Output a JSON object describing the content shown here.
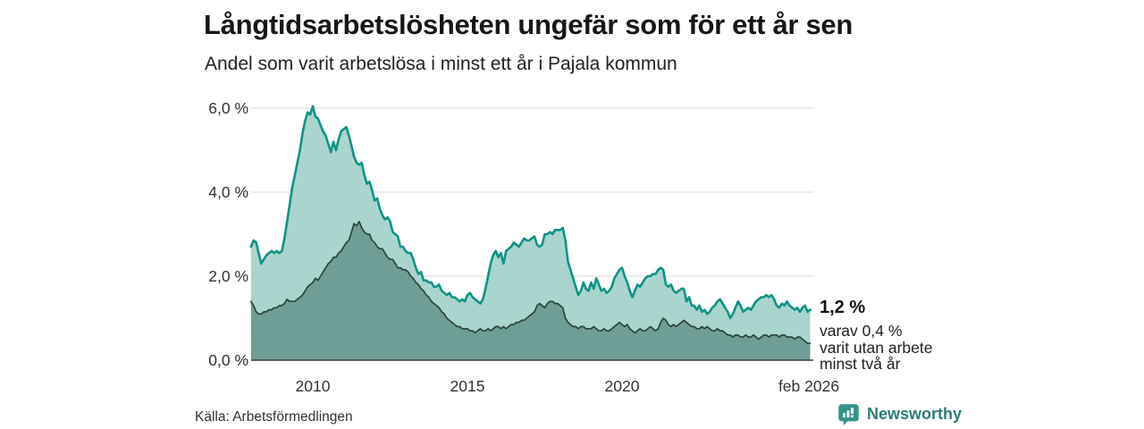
{
  "header": {
    "title": "Långtidsarbetslösheten ungefär som för ett år sen",
    "subtitle": "Andel som varit arbetslösa i minst ett år i Pajala kommun"
  },
  "annotation": {
    "value_label": "1,2 %",
    "detail_line1": "varav 0,4 %",
    "detail_line2": "varit utan arbete",
    "detail_line3": "minst två år"
  },
  "footer": {
    "source": "Källa: Arbetsförmedlingen",
    "brand_name": "Newsworthy"
  },
  "colors": {
    "series1_line": "#0f9384",
    "series1_fill": "#a9d5ce",
    "series2_line": "#2c433f",
    "series2_fill": "#6f9e96",
    "gridline": "#d9d9d9",
    "axis_line": "#3f3f3f",
    "brand_teal": "#37948b"
  },
  "chart_data": {
    "type": "area",
    "title": "Långtidsarbetslösheten ungefär som för ett år sen",
    "subtitle": "Andel som varit arbetslösa i minst ett år i Pajala kommun",
    "unit": "%",
    "frequency": "monthly",
    "x_start": "2008-01",
    "x_end": "2026-02",
    "x_start_year": 2008,
    "ylim": [
      0,
      6.3
    ],
    "grid": "horizontal",
    "legend_position": "none",
    "y_ticks": [
      {
        "value": 6,
        "label": "6,0 %"
      },
      {
        "value": 4,
        "label": "4,0 %"
      },
      {
        "value": 2,
        "label": "2,0 %"
      },
      {
        "value": 0,
        "label": "0,0 %"
      }
    ],
    "x_ticks": [
      {
        "year": 2010,
        "label": "2010"
      },
      {
        "year": 2015,
        "label": "2015"
      },
      {
        "year": 2020,
        "label": "2020"
      },
      {
        "year": 2026.08,
        "label": "feb 2026"
      }
    ],
    "last_values": {
      "at_least_one_year": 1.2,
      "at_least_two_years": 0.4
    },
    "series": [
      {
        "name": "Andel arbetslösa minst ett år",
        "values": [
          2.7,
          2.85,
          2.8,
          2.55,
          2.3,
          2.4,
          2.5,
          2.55,
          2.6,
          2.55,
          2.6,
          2.55,
          2.6,
          2.9,
          3.3,
          3.7,
          4.1,
          4.4,
          4.7,
          5.0,
          5.4,
          5.7,
          5.9,
          5.85,
          6.05,
          5.8,
          5.75,
          5.6,
          5.45,
          5.35,
          5.15,
          4.95,
          5.2,
          5.0,
          5.25,
          5.45,
          5.5,
          5.55,
          5.35,
          5.1,
          4.85,
          4.7,
          4.65,
          4.7,
          4.4,
          4.2,
          4.25,
          4.05,
          3.8,
          3.85,
          3.6,
          3.45,
          3.35,
          3.4,
          3.3,
          3.05,
          3.0,
          2.95,
          2.7,
          2.7,
          2.6,
          2.55,
          2.55,
          2.4,
          2.2,
          2.05,
          2.1,
          1.9,
          1.9,
          1.85,
          1.85,
          1.75,
          1.75,
          1.8,
          1.65,
          1.6,
          1.55,
          1.6,
          1.5,
          1.5,
          1.45,
          1.4,
          1.45,
          1.4,
          1.55,
          1.6,
          1.5,
          1.45,
          1.4,
          1.35,
          1.45,
          1.7,
          2.0,
          2.3,
          2.5,
          2.6,
          2.45,
          2.55,
          2.3,
          2.6,
          2.65,
          2.7,
          2.8,
          2.75,
          2.7,
          2.8,
          2.9,
          2.85,
          2.85,
          2.9,
          2.95,
          2.75,
          2.7,
          2.75,
          3.0,
          3.0,
          3.05,
          3.0,
          3.1,
          3.1,
          3.1,
          3.15,
          2.85,
          2.35,
          2.15,
          1.95,
          1.75,
          1.55,
          1.65,
          1.85,
          1.7,
          1.65,
          1.85,
          1.7,
          1.95,
          1.8,
          1.65,
          1.7,
          1.6,
          1.65,
          1.75,
          1.95,
          2.05,
          2.15,
          2.2,
          2.0,
          1.85,
          1.65,
          1.5,
          1.65,
          1.8,
          1.75,
          1.85,
          1.95,
          2.0,
          2.0,
          2.05,
          2.05,
          2.15,
          2.2,
          2.15,
          1.8,
          1.75,
          1.8,
          1.65,
          1.6,
          1.65,
          1.7,
          1.7,
          1.4,
          1.5,
          1.3,
          1.3,
          1.2,
          1.3,
          1.15,
          1.2,
          1.1,
          1.15,
          1.25,
          1.3,
          1.4,
          1.45,
          1.35,
          1.25,
          1.15,
          1.0,
          1.1,
          1.25,
          1.4,
          1.3,
          1.15,
          1.2,
          1.25,
          1.2,
          1.3,
          1.4,
          1.45,
          1.5,
          1.5,
          1.55,
          1.5,
          1.55,
          1.45,
          1.3,
          1.25,
          1.35,
          1.3,
          1.4,
          1.3,
          1.25,
          1.2,
          1.25,
          1.15,
          1.25,
          1.3,
          1.15,
          1.2
        ]
      },
      {
        "name": "varav utan arbete minst två år",
        "values": [
          1.4,
          1.3,
          1.15,
          1.1,
          1.1,
          1.15,
          1.15,
          1.2,
          1.2,
          1.25,
          1.25,
          1.3,
          1.3,
          1.35,
          1.45,
          1.4,
          1.4,
          1.4,
          1.45,
          1.5,
          1.55,
          1.65,
          1.75,
          1.8,
          1.85,
          1.95,
          1.9,
          2.0,
          2.1,
          2.2,
          2.3,
          2.35,
          2.45,
          2.45,
          2.55,
          2.6,
          2.7,
          2.8,
          2.85,
          3.05,
          3.25,
          3.2,
          3.3,
          3.15,
          3.05,
          3.0,
          3.0,
          2.85,
          2.8,
          2.7,
          2.65,
          2.65,
          2.55,
          2.45,
          2.4,
          2.4,
          2.3,
          2.2,
          2.2,
          2.15,
          2.15,
          2.1,
          2.0,
          1.95,
          1.85,
          1.8,
          1.7,
          1.65,
          1.55,
          1.5,
          1.4,
          1.35,
          1.3,
          1.25,
          1.15,
          1.1,
          1.0,
          0.95,
          0.9,
          0.85,
          0.8,
          0.8,
          0.75,
          0.75,
          0.75,
          0.7,
          0.7,
          0.65,
          0.7,
          0.75,
          0.7,
          0.7,
          0.75,
          0.7,
          0.75,
          0.8,
          0.8,
          0.75,
          0.8,
          0.75,
          0.8,
          0.85,
          0.85,
          0.9,
          0.9,
          0.95,
          0.95,
          1.0,
          1.05,
          1.1,
          1.15,
          1.3,
          1.35,
          1.3,
          1.25,
          1.35,
          1.4,
          1.4,
          1.35,
          1.35,
          1.3,
          1.25,
          1.0,
          0.9,
          0.85,
          0.8,
          0.8,
          0.75,
          0.8,
          0.8,
          0.75,
          0.75,
          0.75,
          0.8,
          0.75,
          0.7,
          0.7,
          0.75,
          0.7,
          0.7,
          0.75,
          0.8,
          0.85,
          0.9,
          0.85,
          0.8,
          0.85,
          0.75,
          0.7,
          0.65,
          0.7,
          0.75,
          0.7,
          0.7,
          0.75,
          0.8,
          0.75,
          0.7,
          0.75,
          0.9,
          1.0,
          0.95,
          0.85,
          0.8,
          0.85,
          0.8,
          0.85,
          0.9,
          0.95,
          0.9,
          0.85,
          0.8,
          0.8,
          0.75,
          0.75,
          0.8,
          0.75,
          0.8,
          0.75,
          0.7,
          0.7,
          0.75,
          0.7,
          0.7,
          0.65,
          0.6,
          0.6,
          0.55,
          0.6,
          0.6,
          0.55,
          0.55,
          0.6,
          0.55,
          0.55,
          0.6,
          0.55,
          0.5,
          0.55,
          0.6,
          0.6,
          0.55,
          0.6,
          0.6,
          0.6,
          0.55,
          0.6,
          0.6,
          0.55,
          0.55,
          0.55,
          0.5,
          0.55,
          0.55,
          0.5,
          0.45,
          0.4,
          0.4
        ]
      }
    ]
  }
}
